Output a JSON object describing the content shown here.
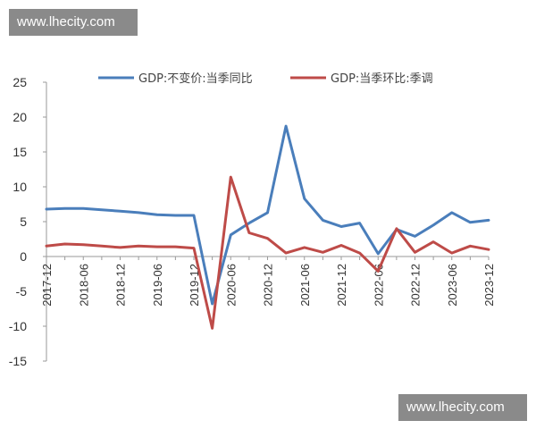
{
  "watermarks": [
    "www.lhecity.com",
    "www.lhecity.com"
  ],
  "chart_data": {
    "type": "line",
    "title": "",
    "xlabel": "",
    "ylabel": "",
    "ylim": [
      -15,
      25
    ],
    "yticks": [
      "25",
      "20",
      "15",
      "10",
      "5",
      "0",
      "-5",
      "-10",
      "-15"
    ],
    "xtick_labels": [
      "2017-12",
      "2018-06",
      "2018-12",
      "2019-06",
      "2019-12",
      "2020-06",
      "2020-12",
      "2021-06",
      "2021-12",
      "2022-06",
      "2022-12",
      "2023-06",
      "2023-12"
    ],
    "x": [
      "2017-12",
      "2018-03",
      "2018-06",
      "2018-09",
      "2018-12",
      "2019-03",
      "2019-06",
      "2019-09",
      "2019-12",
      "2020-03",
      "2020-06",
      "2020-09",
      "2020-12",
      "2021-03",
      "2021-06",
      "2021-09",
      "2021-12",
      "2022-03",
      "2022-06",
      "2022-09",
      "2022-12",
      "2023-03",
      "2023-06",
      "2023-09",
      "2023-12"
    ],
    "grid": false,
    "legend_position": "top",
    "series": [
      {
        "name": "GDP:不变价:当季同比",
        "color": "#4a7ebb",
        "values": [
          6.8,
          6.9,
          6.9,
          6.7,
          6.5,
          6.3,
          6.0,
          5.9,
          5.9,
          -6.8,
          3.1,
          4.8,
          6.3,
          18.7,
          8.3,
          5.2,
          4.3,
          4.8,
          0.4,
          3.9,
          2.9,
          4.5,
          6.3,
          4.9,
          5.2
        ]
      },
      {
        "name": "GDP:当季环比:季调",
        "color": "#be4b48",
        "values": [
          1.5,
          1.8,
          1.7,
          1.5,
          1.3,
          1.5,
          1.4,
          1.4,
          1.2,
          -10.3,
          11.4,
          3.4,
          2.6,
          0.5,
          1.3,
          0.6,
          1.6,
          0.5,
          -2.1,
          4.0,
          0.6,
          2.1,
          0.5,
          1.5,
          1.0
        ]
      }
    ]
  }
}
